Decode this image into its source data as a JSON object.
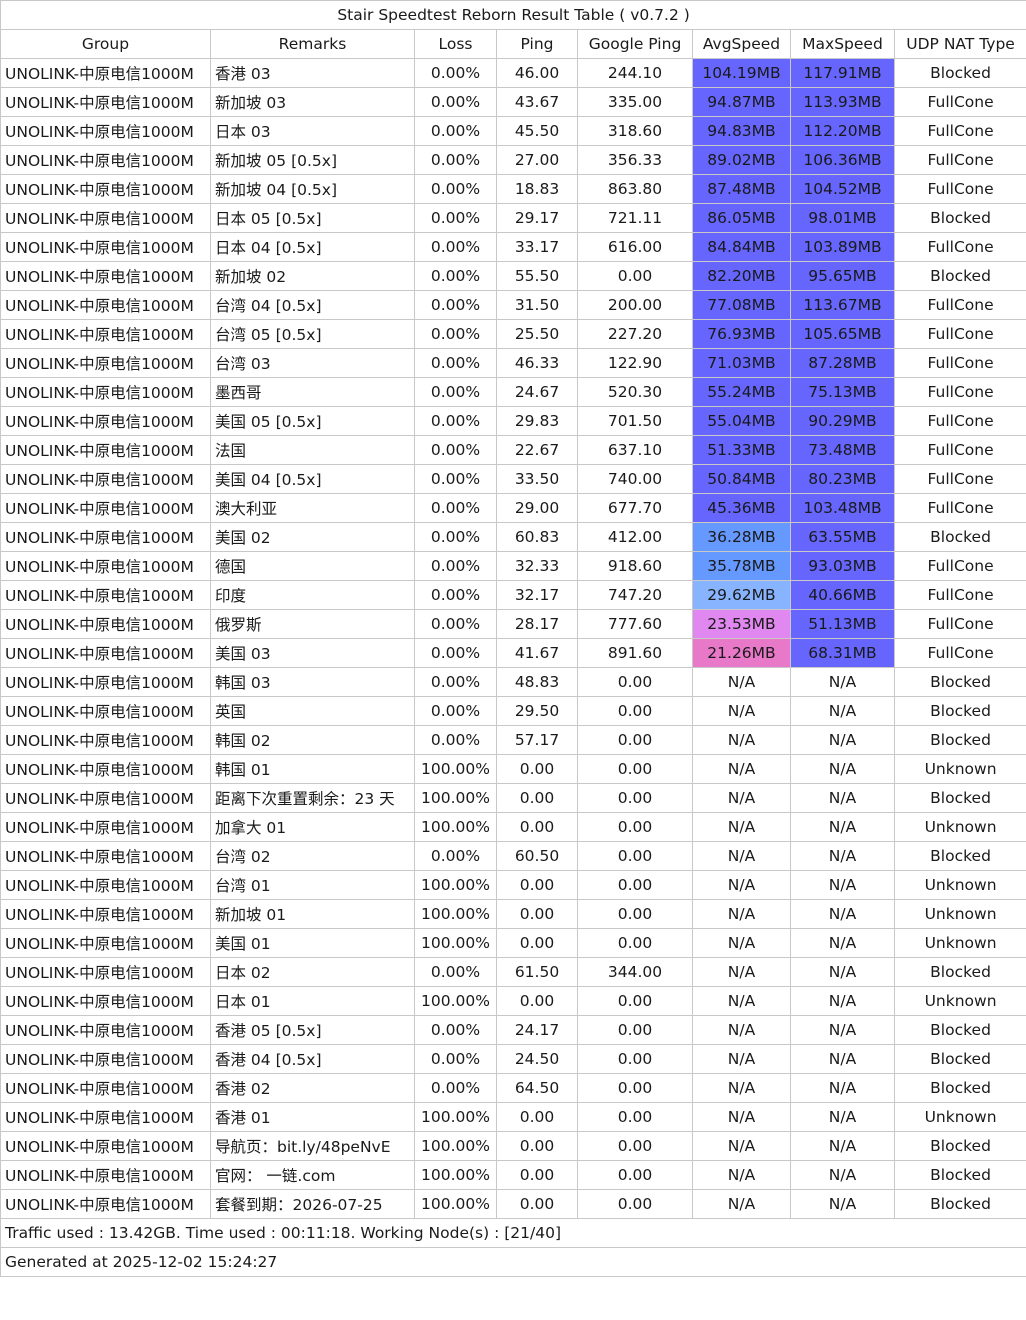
{
  "title": "Stair Speedtest Reborn Result Table ( v0.7.2 )",
  "columns": [
    "Group",
    "Remarks",
    "Loss",
    "Ping",
    "Google Ping",
    "AvgSpeed",
    "MaxSpeed",
    "UDP NAT Type"
  ],
  "colors": {
    "speed_high": "#6666ff",
    "speed_mid": "#6699ff",
    "speed_light": "#88b4ff",
    "speed_pink": "#e088f0",
    "speed_magenta": "#e878c8",
    "grid": "#c8c8c8"
  },
  "rows": [
    {
      "group": "UNOLINK-中原电信1000M",
      "remarks": "香港 03",
      "loss": "0.00%",
      "ping": "46.00",
      "gping": "244.10",
      "avg": "104.19MB",
      "max": "117.91MB",
      "nat": "Blocked",
      "avg_color": "#6666ff",
      "max_color": "#6666ff"
    },
    {
      "group": "UNOLINK-中原电信1000M",
      "remarks": "新加坡 03",
      "loss": "0.00%",
      "ping": "43.67",
      "gping": "335.00",
      "avg": "94.87MB",
      "max": "113.93MB",
      "nat": "FullCone",
      "avg_color": "#6666ff",
      "max_color": "#6666ff"
    },
    {
      "group": "UNOLINK-中原电信1000M",
      "remarks": "日本 03",
      "loss": "0.00%",
      "ping": "45.50",
      "gping": "318.60",
      "avg": "94.83MB",
      "max": "112.20MB",
      "nat": "FullCone",
      "avg_color": "#6666ff",
      "max_color": "#6666ff"
    },
    {
      "group": "UNOLINK-中原电信1000M",
      "remarks": "新加坡 05 [0.5x]",
      "loss": "0.00%",
      "ping": "27.00",
      "gping": "356.33",
      "avg": "89.02MB",
      "max": "106.36MB",
      "nat": "FullCone",
      "avg_color": "#6666ff",
      "max_color": "#6666ff"
    },
    {
      "group": "UNOLINK-中原电信1000M",
      "remarks": "新加坡 04 [0.5x]",
      "loss": "0.00%",
      "ping": "18.83",
      "gping": "863.80",
      "avg": "87.48MB",
      "max": "104.52MB",
      "nat": "FullCone",
      "avg_color": "#6666ff",
      "max_color": "#6666ff"
    },
    {
      "group": "UNOLINK-中原电信1000M",
      "remarks": "日本 05 [0.5x]",
      "loss": "0.00%",
      "ping": "29.17",
      "gping": "721.11",
      "avg": "86.05MB",
      "max": "98.01MB",
      "nat": "Blocked",
      "avg_color": "#6666ff",
      "max_color": "#6666ff"
    },
    {
      "group": "UNOLINK-中原电信1000M",
      "remarks": "日本 04 [0.5x]",
      "loss": "0.00%",
      "ping": "33.17",
      "gping": "616.00",
      "avg": "84.84MB",
      "max": "103.89MB",
      "nat": "FullCone",
      "avg_color": "#6666ff",
      "max_color": "#6666ff"
    },
    {
      "group": "UNOLINK-中原电信1000M",
      "remarks": "新加坡 02",
      "loss": "0.00%",
      "ping": "55.50",
      "gping": "0.00",
      "avg": "82.20MB",
      "max": "95.65MB",
      "nat": "Blocked",
      "avg_color": "#6666ff",
      "max_color": "#6666ff"
    },
    {
      "group": "UNOLINK-中原电信1000M",
      "remarks": "台湾 04 [0.5x]",
      "loss": "0.00%",
      "ping": "31.50",
      "gping": "200.00",
      "avg": "77.08MB",
      "max": "113.67MB",
      "nat": "FullCone",
      "avg_color": "#6666ff",
      "max_color": "#6666ff"
    },
    {
      "group": "UNOLINK-中原电信1000M",
      "remarks": "台湾 05 [0.5x]",
      "loss": "0.00%",
      "ping": "25.50",
      "gping": "227.20",
      "avg": "76.93MB",
      "max": "105.65MB",
      "nat": "FullCone",
      "avg_color": "#6666ff",
      "max_color": "#6666ff"
    },
    {
      "group": "UNOLINK-中原电信1000M",
      "remarks": "台湾 03",
      "loss": "0.00%",
      "ping": "46.33",
      "gping": "122.90",
      "avg": "71.03MB",
      "max": "87.28MB",
      "nat": "FullCone",
      "avg_color": "#6666ff",
      "max_color": "#6666ff"
    },
    {
      "group": "UNOLINK-中原电信1000M",
      "remarks": "墨西哥",
      "loss": "0.00%",
      "ping": "24.67",
      "gping": "520.30",
      "avg": "55.24MB",
      "max": "75.13MB",
      "nat": "FullCone",
      "avg_color": "#6666ff",
      "max_color": "#6666ff"
    },
    {
      "group": "UNOLINK-中原电信1000M",
      "remarks": "美国 05 [0.5x]",
      "loss": "0.00%",
      "ping": "29.83",
      "gping": "701.50",
      "avg": "55.04MB",
      "max": "90.29MB",
      "nat": "FullCone",
      "avg_color": "#6666ff",
      "max_color": "#6666ff"
    },
    {
      "group": "UNOLINK-中原电信1000M",
      "remarks": "法国",
      "loss": "0.00%",
      "ping": "22.67",
      "gping": "637.10",
      "avg": "51.33MB",
      "max": "73.48MB",
      "nat": "FullCone",
      "avg_color": "#6666ff",
      "max_color": "#6666ff"
    },
    {
      "group": "UNOLINK-中原电信1000M",
      "remarks": "美国 04 [0.5x]",
      "loss": "0.00%",
      "ping": "33.50",
      "gping": "740.00",
      "avg": "50.84MB",
      "max": "80.23MB",
      "nat": "FullCone",
      "avg_color": "#6666ff",
      "max_color": "#6666ff"
    },
    {
      "group": "UNOLINK-中原电信1000M",
      "remarks": "澳大利亚",
      "loss": "0.00%",
      "ping": "29.00",
      "gping": "677.70",
      "avg": "45.36MB",
      "max": "103.48MB",
      "nat": "FullCone",
      "avg_color": "#6666ff",
      "max_color": "#6666ff"
    },
    {
      "group": "UNOLINK-中原电信1000M",
      "remarks": "美国 02",
      "loss": "0.00%",
      "ping": "60.83",
      "gping": "412.00",
      "avg": "36.28MB",
      "max": "63.55MB",
      "nat": "Blocked",
      "avg_color": "#6699ff",
      "max_color": "#6666ff"
    },
    {
      "group": "UNOLINK-中原电信1000M",
      "remarks": "德国",
      "loss": "0.00%",
      "ping": "32.33",
      "gping": "918.60",
      "avg": "35.78MB",
      "max": "93.03MB",
      "nat": "FullCone",
      "avg_color": "#6699ff",
      "max_color": "#6666ff"
    },
    {
      "group": "UNOLINK-中原电信1000M",
      "remarks": "印度",
      "loss": "0.00%",
      "ping": "32.17",
      "gping": "747.20",
      "avg": "29.62MB",
      "max": "40.66MB",
      "nat": "FullCone",
      "avg_color": "#88b4ff",
      "max_color": "#6666ff"
    },
    {
      "group": "UNOLINK-中原电信1000M",
      "remarks": "俄罗斯",
      "loss": "0.00%",
      "ping": "28.17",
      "gping": "777.60",
      "avg": "23.53MB",
      "max": "51.13MB",
      "nat": "FullCone",
      "avg_color": "#e088f0",
      "max_color": "#6666ff"
    },
    {
      "group": "UNOLINK-中原电信1000M",
      "remarks": "美国 03",
      "loss": "0.00%",
      "ping": "41.67",
      "gping": "891.60",
      "avg": "21.26MB",
      "max": "68.31MB",
      "nat": "FullCone",
      "avg_color": "#e878c8",
      "max_color": "#6666ff"
    },
    {
      "group": "UNOLINK-中原电信1000M",
      "remarks": "韩国 03",
      "loss": "0.00%",
      "ping": "48.83",
      "gping": "0.00",
      "avg": "N/A",
      "max": "N/A",
      "nat": "Blocked",
      "avg_color": "#ffffff",
      "max_color": "#ffffff"
    },
    {
      "group": "UNOLINK-中原电信1000M",
      "remarks": "英国",
      "loss": "0.00%",
      "ping": "29.50",
      "gping": "0.00",
      "avg": "N/A",
      "max": "N/A",
      "nat": "Blocked",
      "avg_color": "#ffffff",
      "max_color": "#ffffff"
    },
    {
      "group": "UNOLINK-中原电信1000M",
      "remarks": "韩国 02",
      "loss": "0.00%",
      "ping": "57.17",
      "gping": "0.00",
      "avg": "N/A",
      "max": "N/A",
      "nat": "Blocked",
      "avg_color": "#ffffff",
      "max_color": "#ffffff"
    },
    {
      "group": "UNOLINK-中原电信1000M",
      "remarks": "韩国 01",
      "loss": "100.00%",
      "ping": "0.00",
      "gping": "0.00",
      "avg": "N/A",
      "max": "N/A",
      "nat": "Unknown",
      "avg_color": "#ffffff",
      "max_color": "#ffffff"
    },
    {
      "group": "UNOLINK-中原电信1000M",
      "remarks": "距离下次重置剩余：23 天",
      "loss": "100.00%",
      "ping": "0.00",
      "gping": "0.00",
      "avg": "N/A",
      "max": "N/A",
      "nat": "Blocked",
      "avg_color": "#ffffff",
      "max_color": "#ffffff"
    },
    {
      "group": "UNOLINK-中原电信1000M",
      "remarks": "加拿大 01",
      "loss": "100.00%",
      "ping": "0.00",
      "gping": "0.00",
      "avg": "N/A",
      "max": "N/A",
      "nat": "Unknown",
      "avg_color": "#ffffff",
      "max_color": "#ffffff"
    },
    {
      "group": "UNOLINK-中原电信1000M",
      "remarks": "台湾 02",
      "loss": "0.00%",
      "ping": "60.50",
      "gping": "0.00",
      "avg": "N/A",
      "max": "N/A",
      "nat": "Blocked",
      "avg_color": "#ffffff",
      "max_color": "#ffffff"
    },
    {
      "group": "UNOLINK-中原电信1000M",
      "remarks": "台湾 01",
      "loss": "100.00%",
      "ping": "0.00",
      "gping": "0.00",
      "avg": "N/A",
      "max": "N/A",
      "nat": "Unknown",
      "avg_color": "#ffffff",
      "max_color": "#ffffff"
    },
    {
      "group": "UNOLINK-中原电信1000M",
      "remarks": "新加坡 01",
      "loss": "100.00%",
      "ping": "0.00",
      "gping": "0.00",
      "avg": "N/A",
      "max": "N/A",
      "nat": "Unknown",
      "avg_color": "#ffffff",
      "max_color": "#ffffff"
    },
    {
      "group": "UNOLINK-中原电信1000M",
      "remarks": "美国 01",
      "loss": "100.00%",
      "ping": "0.00",
      "gping": "0.00",
      "avg": "N/A",
      "max": "N/A",
      "nat": "Unknown",
      "avg_color": "#ffffff",
      "max_color": "#ffffff"
    },
    {
      "group": "UNOLINK-中原电信1000M",
      "remarks": "日本 02",
      "loss": "0.00%",
      "ping": "61.50",
      "gping": "344.00",
      "avg": "N/A",
      "max": "N/A",
      "nat": "Blocked",
      "avg_color": "#ffffff",
      "max_color": "#ffffff"
    },
    {
      "group": "UNOLINK-中原电信1000M",
      "remarks": "日本 01",
      "loss": "100.00%",
      "ping": "0.00",
      "gping": "0.00",
      "avg": "N/A",
      "max": "N/A",
      "nat": "Unknown",
      "avg_color": "#ffffff",
      "max_color": "#ffffff"
    },
    {
      "group": "UNOLINK-中原电信1000M",
      "remarks": "香港 05 [0.5x]",
      "loss": "0.00%",
      "ping": "24.17",
      "gping": "0.00",
      "avg": "N/A",
      "max": "N/A",
      "nat": "Blocked",
      "avg_color": "#ffffff",
      "max_color": "#ffffff"
    },
    {
      "group": "UNOLINK-中原电信1000M",
      "remarks": "香港 04 [0.5x]",
      "loss": "0.00%",
      "ping": "24.50",
      "gping": "0.00",
      "avg": "N/A",
      "max": "N/A",
      "nat": "Blocked",
      "avg_color": "#ffffff",
      "max_color": "#ffffff"
    },
    {
      "group": "UNOLINK-中原电信1000M",
      "remarks": "香港 02",
      "loss": "0.00%",
      "ping": "64.50",
      "gping": "0.00",
      "avg": "N/A",
      "max": "N/A",
      "nat": "Blocked",
      "avg_color": "#ffffff",
      "max_color": "#ffffff"
    },
    {
      "group": "UNOLINK-中原电信1000M",
      "remarks": "香港 01",
      "loss": "100.00%",
      "ping": "0.00",
      "gping": "0.00",
      "avg": "N/A",
      "max": "N/A",
      "nat": "Unknown",
      "avg_color": "#ffffff",
      "max_color": "#ffffff"
    },
    {
      "group": "UNOLINK-中原电信1000M",
      "remarks": "导航页：bit.ly/48peNvE",
      "loss": "100.00%",
      "ping": "0.00",
      "gping": "0.00",
      "avg": "N/A",
      "max": "N/A",
      "nat": "Blocked",
      "avg_color": "#ffffff",
      "max_color": "#ffffff"
    },
    {
      "group": "UNOLINK-中原电信1000M",
      "remarks": "官网： 一链.com",
      "loss": "100.00%",
      "ping": "0.00",
      "gping": "0.00",
      "avg": "N/A",
      "max": "N/A",
      "nat": "Blocked",
      "avg_color": "#ffffff",
      "max_color": "#ffffff"
    },
    {
      "group": "UNOLINK-中原电信1000M",
      "remarks": "套餐到期：2026-07-25",
      "loss": "100.00%",
      "ping": "0.00",
      "gping": "0.00",
      "avg": "N/A",
      "max": "N/A",
      "nat": "Blocked",
      "avg_color": "#ffffff",
      "max_color": "#ffffff"
    }
  ],
  "footer": {
    "traffic": "Traffic used : 13.42GB. Time used : 00:11:18. Working Node(s) : [21/40]",
    "generated": "Generated at 2025-12-02 15:24:27"
  }
}
